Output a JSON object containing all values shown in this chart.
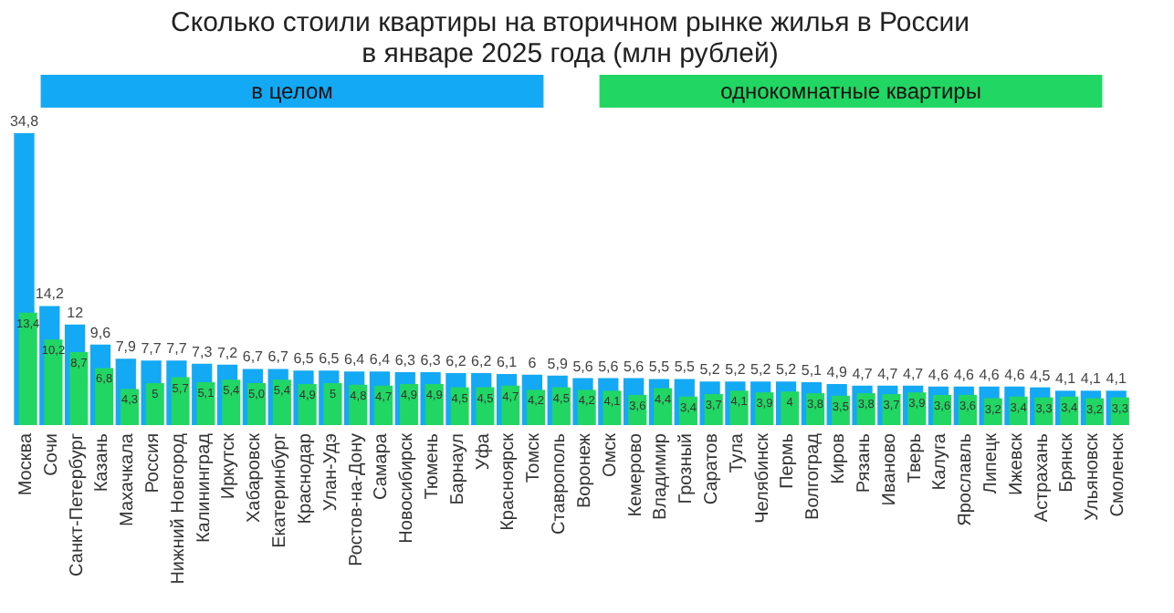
{
  "chart_data": {
    "type": "bar",
    "title": [
      "Сколько стоили квартиры на вторичном рынке жилья в России",
      "в январе 2025 года (млн рублей)"
    ],
    "categories": [
      "Москва",
      "Сочи",
      "Санкт-Петербург",
      "Казань",
      "Махачкала",
      "Россия",
      "Нижний Новгород",
      "Калининград",
      "Иркутск",
      "Хабаровск",
      "Екатеринбург",
      "Краснодар",
      "Улан-Удэ",
      "Ростов-на-Дону",
      "Самара",
      "Новосибирск",
      "Тюмень",
      "Барнаул",
      "Уфа",
      "Красноярск",
      "Томск",
      "Ставрополь",
      "Воронеж",
      "Омск",
      "Кемерово",
      "Владимир",
      "Грозный",
      "Саратов",
      "Тула",
      "Челябинск",
      "Пермь",
      "Волгоград",
      "Киров",
      "Рязань",
      "Иваново",
      "Тверь",
      "Калуга",
      "Ярославль",
      "Липецк",
      "Ижевск",
      "Астрахань",
      "Брянск",
      "Ульяновск",
      "Смоленск"
    ],
    "series": [
      {
        "name": "в целом",
        "color": "#14a9f5",
        "values": [
          34.8,
          14.2,
          12,
          9.6,
          7.9,
          7.7,
          7.7,
          7.3,
          7.2,
          6.7,
          6.7,
          6.5,
          6.5,
          6.4,
          6.4,
          6.3,
          6.3,
          6.2,
          6.2,
          6.1,
          6,
          5.9,
          5.6,
          5.6,
          5.6,
          5.5,
          5.5,
          5.2,
          5.2,
          5.2,
          5.2,
          5.1,
          4.9,
          4.7,
          4.7,
          4.7,
          4.6,
          4.6,
          4.6,
          4.6,
          4.5,
          4.1,
          4.1,
          4.1
        ],
        "value_labels": [
          "34,8",
          "14,2",
          "12",
          "9,6",
          "7,9",
          "7,7",
          "7,7",
          "7,3",
          "7,2",
          "6,7",
          "6,7",
          "6,5",
          "6,5",
          "6,4",
          "6,4",
          "6,3",
          "6,3",
          "6,2",
          "6,2",
          "6,1",
          "6",
          "5,9",
          "5,6",
          "5,6",
          "5,6",
          "5,5",
          "5,5",
          "5,2",
          "5,2",
          "5,2",
          "5,2",
          "5,1",
          "4,9",
          "4,7",
          "4,7",
          "4,7",
          "4,6",
          "4,6",
          "4,6",
          "4,6",
          "4,5",
          "4,1",
          "4,1",
          "4,1"
        ]
      },
      {
        "name": "однокомнатные квартиры",
        "color": "#22d663",
        "values": [
          13.4,
          10.2,
          8.7,
          6.8,
          4.3,
          5,
          5.7,
          5.1,
          5.4,
          5.0,
          5.4,
          4.9,
          5,
          4.8,
          4.7,
          4.9,
          4.9,
          4.5,
          4.5,
          4.7,
          4.2,
          4.5,
          4.2,
          4.1,
          3.6,
          4.4,
          3.4,
          3.7,
          4.1,
          3.9,
          4,
          3.8,
          3.5,
          3.8,
          3.7,
          3.9,
          3.6,
          3.6,
          3.2,
          3.4,
          3.3,
          3.4,
          3.2,
          3.3
        ],
        "value_labels": [
          "13,4",
          "10,2",
          "8,7",
          "6,8",
          "4,3",
          "5",
          "5,7",
          "5,1",
          "5,4",
          "5,0",
          "5,4",
          "4,9",
          "5",
          "4,8",
          "4,7",
          "4,9",
          "4,9",
          "4,5",
          "4,5",
          "4,7",
          "4,2",
          "4,5",
          "4,2",
          "4,1",
          "3,6",
          "4,4",
          "3,4",
          "3,7",
          "4,1",
          "3,9",
          "4",
          "3,8",
          "3,5",
          "3,8",
          "3,7",
          "3,9",
          "3,6",
          "3,6",
          "3,2",
          "3,4",
          "3,3",
          "3,4",
          "3,2",
          "3,3"
        ]
      }
    ],
    "data_labels": true,
    "legend": "top",
    "grid": false
  }
}
